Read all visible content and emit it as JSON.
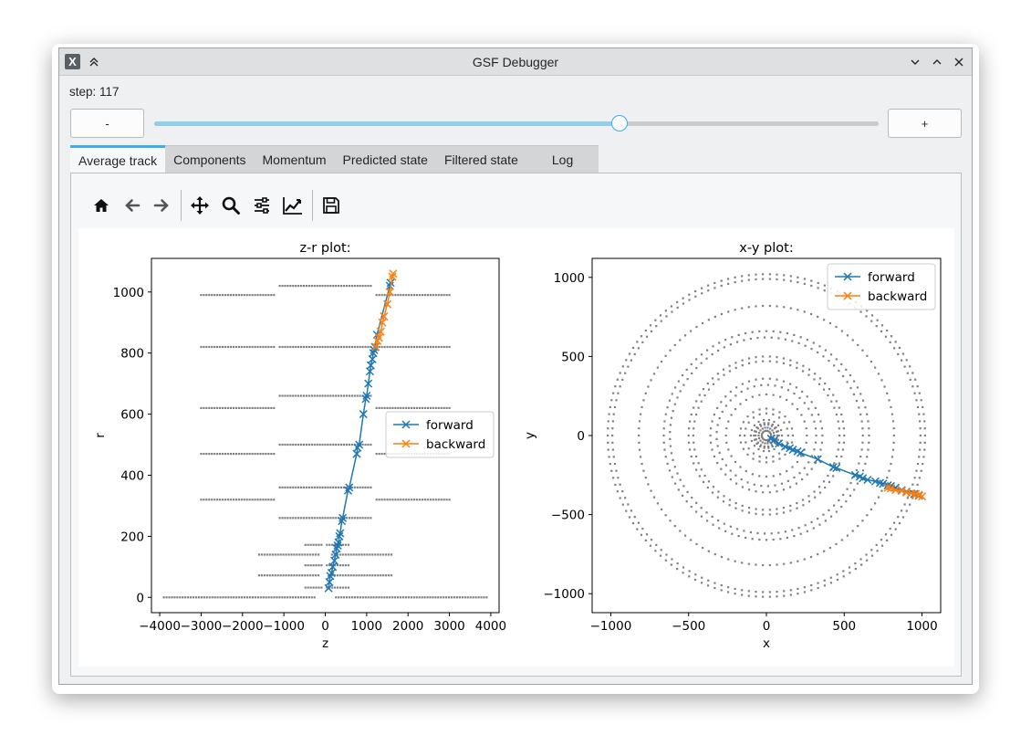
{
  "window": {
    "title": "GSF Debugger",
    "app_icon": "x-app-icon",
    "controls": [
      "chevron-down-icon",
      "chevron-up-icon",
      "close-icon"
    ],
    "keep_above_icon": "double-chevron-up-icon"
  },
  "step": {
    "label": "step: 117",
    "value": 117
  },
  "buttons": {
    "minus": "-",
    "plus": "+"
  },
  "slider": {
    "fraction": 0.642,
    "accent": "#3daee9"
  },
  "tabs": [
    {
      "label": "Average track",
      "active": true
    },
    {
      "label": "Components",
      "active": false
    },
    {
      "label": "Momentum",
      "active": false
    },
    {
      "label": "Predicted state",
      "active": false
    },
    {
      "label": "Filtered state",
      "active": false
    },
    {
      "label": "Log",
      "active": false
    }
  ],
  "toolbar": [
    "home-icon",
    "back-icon",
    "forward-icon",
    "pan-icon",
    "zoom-icon",
    "configure-icon",
    "edit-curve-icon",
    "save-icon"
  ],
  "colors": {
    "forward": "#1f77b4",
    "backward": "#ff7f0e",
    "hits": "#808080"
  },
  "chart_data": [
    {
      "type": "line",
      "title": "z-r plot:",
      "xlabel": "z",
      "ylabel": "r",
      "xlim": [
        -4200,
        4200
      ],
      "ylim": [
        -50,
        1110
      ],
      "xticks": [
        -4000,
        -3000,
        -2000,
        -1000,
        0,
        1000,
        2000,
        3000,
        4000
      ],
      "xtick_labels": [
        "−4000",
        "−3000",
        "−2000",
        "−1000",
        "0",
        "1000",
        "2000",
        "3000",
        "4000"
      ],
      "yticks": [
        0,
        200,
        400,
        600,
        800,
        1000
      ],
      "ytick_labels": [
        "0",
        "200",
        "400",
        "600",
        "800",
        "1000"
      ],
      "legend": {
        "position": "center-right",
        "entries": [
          "forward",
          "backward"
        ]
      },
      "series": [
        {
          "name": "forward",
          "marker": "x",
          "x": [
            80,
            100,
            120,
            150,
            180,
            220,
            250,
            280,
            300,
            320,
            340,
            360,
            400,
            420,
            550,
            580,
            760,
            780,
            820,
            920,
            980,
            1000,
            1040,
            1080,
            1100,
            1140,
            1160,
            1180,
            1200,
            1250,
            1560,
            1580
          ],
          "y": [
            30,
            50,
            70,
            80,
            100,
            120,
            140,
            160,
            170,
            180,
            200,
            210,
            250,
            260,
            350,
            360,
            470,
            490,
            500,
            600,
            650,
            660,
            700,
            740,
            760,
            780,
            800,
            810,
            820,
            860,
            1020,
            1030
          ]
        },
        {
          "name": "backward",
          "marker": "x",
          "x": [
            1220,
            1260,
            1300,
            1340,
            1380,
            1420,
            1500,
            1560,
            1620,
            1640
          ],
          "y": [
            820,
            840,
            850,
            870,
            900,
            920,
            960,
            1000,
            1050,
            1060
          ]
        }
      ],
      "hits": {
        "rows": [
          {
            "y": 0,
            "x_from": -3900,
            "x_to": 3900,
            "gap": [
              -200,
              200
            ]
          },
          {
            "y": 32,
            "x_from": -480,
            "x_to": 560,
            "gap": [
              -40,
              40
            ]
          },
          {
            "y": 72,
            "x_from": -1600,
            "x_to": 1600,
            "gap": [
              -160,
              160
            ]
          },
          {
            "y": 105,
            "x_from": -480,
            "x_to": 560,
            "gap": [
              -40,
              40
            ]
          },
          {
            "y": 140,
            "x_from": -1600,
            "x_to": 1600,
            "gap": [
              -160,
              160
            ]
          },
          {
            "y": 172,
            "x_from": -480,
            "x_to": 560,
            "gap": [
              -40,
              40
            ]
          },
          {
            "y": 260,
            "x_from": -1100,
            "x_to": 1100,
            "gap": [
              0,
              0
            ]
          },
          {
            "y": 320,
            "x_from": -3000,
            "x_to": 3000,
            "gap": [
              -1200,
              1200
            ]
          },
          {
            "y": 360,
            "x_from": -1100,
            "x_to": 1100,
            "gap": [
              0,
              0
            ]
          },
          {
            "y": 470,
            "x_from": -3000,
            "x_to": 3000,
            "gap": [
              -1200,
              1200
            ]
          },
          {
            "y": 500,
            "x_from": -1100,
            "x_to": 1100,
            "gap": [
              0,
              0
            ]
          },
          {
            "y": 620,
            "x_from": -3000,
            "x_to": 3000,
            "gap": [
              -1200,
              1200
            ]
          },
          {
            "y": 660,
            "x_from": -1100,
            "x_to": 1100,
            "gap": [
              0,
              0
            ]
          },
          {
            "y": 820,
            "x_from": -3000,
            "x_to": 3000,
            "gap": [
              -1200,
              1200
            ]
          },
          {
            "y": 820,
            "x_from": -1100,
            "x_to": 1100,
            "gap": [
              0,
              0
            ]
          },
          {
            "y": 990,
            "x_from": -3000,
            "x_to": 3000,
            "gap": [
              -1200,
              1200
            ]
          },
          {
            "y": 1020,
            "x_from": -1100,
            "x_to": 1100,
            "gap": [
              0,
              0
            ]
          }
        ]
      }
    },
    {
      "type": "line",
      "title": "x-y plot:",
      "xlabel": "x",
      "ylabel": "y",
      "xlim": [
        -1120,
        1120
      ],
      "ylim": [
        -1120,
        1120
      ],
      "xticks": [
        -1000,
        -500,
        0,
        500,
        1000
      ],
      "xtick_labels": [
        "−1000",
        "−500",
        "0",
        "500",
        "1000"
      ],
      "yticks": [
        -1000,
        -500,
        0,
        500,
        1000
      ],
      "ytick_labels": [
        "−1000",
        "−500",
        "0",
        "500",
        "1000"
      ],
      "legend": {
        "position": "top-right",
        "entries": [
          "forward",
          "backward"
        ]
      },
      "series": [
        {
          "name": "forward",
          "marker": "x",
          "x": [
            30,
            50,
            80,
            120,
            150,
            170,
            200,
            220,
            330,
            430,
            450,
            570,
            600,
            620,
            650,
            700,
            730,
            750,
            780,
            800,
            830,
            870,
            900,
            950,
            980
          ],
          "y": [
            -20,
            -30,
            -50,
            -70,
            -80,
            -90,
            -100,
            -110,
            -150,
            -200,
            -205,
            -250,
            -260,
            -270,
            -280,
            -290,
            -300,
            -305,
            -315,
            -320,
            -330,
            -345,
            -355,
            -370,
            -380
          ]
        },
        {
          "name": "backward",
          "marker": "x",
          "x": [
            780,
            800,
            830,
            870,
            900,
            930,
            960,
            980,
            1000
          ],
          "y": [
            -330,
            -335,
            -345,
            -350,
            -360,
            -365,
            -370,
            -375,
            -385
          ]
        }
      ],
      "hits": {
        "rings": [
          30,
          50,
          70,
          80,
          100,
          140,
          170,
          260,
          320,
          360,
          470,
          500,
          620,
          660,
          820,
          990,
          1020
        ]
      }
    }
  ]
}
